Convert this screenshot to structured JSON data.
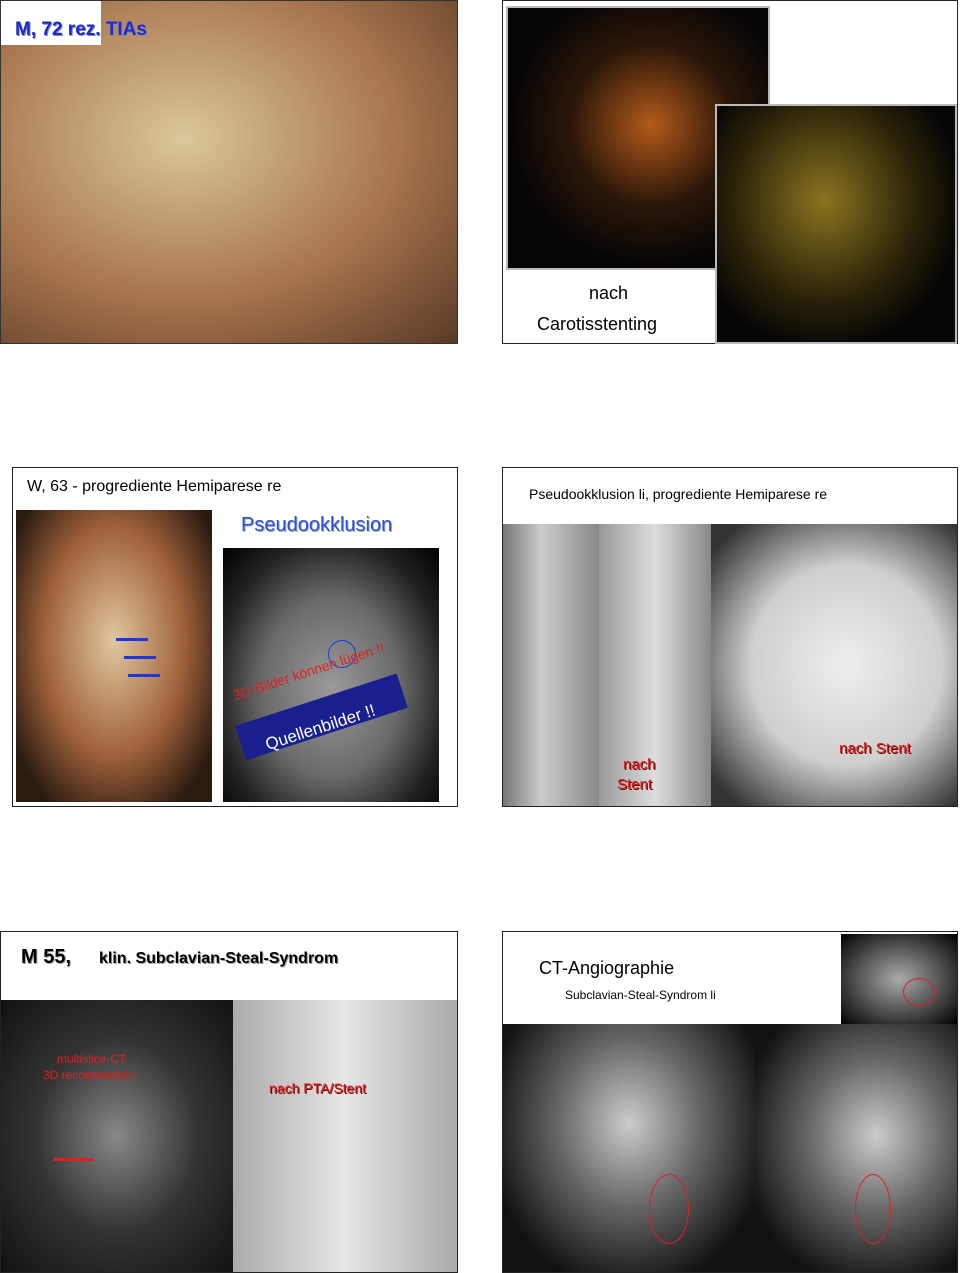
{
  "slide1": {
    "title": "M, 72   rez. TIAs",
    "caption_line1": "nach",
    "caption_line2": "Carotisstenting"
  },
  "slide2": {
    "title": "W, 63 - progrediente Hemiparese re",
    "heading": "Pseudookklusion",
    "overlay_line1": "3D-Bilder können lügen !!",
    "overlay_line2": "Quellenbilder !!"
  },
  "slide3": {
    "title": "Pseudookklusion li, progrediente Hemiparese re",
    "label_left_line1": "nach",
    "label_left_line2": "Stent",
    "label_right": "nach Stent"
  },
  "slide4": {
    "title": "M 55,",
    "subtitle": "klin. Subclavian-Steal-Syndrom",
    "overlay_line1": "multislice-CT",
    "overlay_line2": "3D reconstruction",
    "label": "nach PTA/Stent"
  },
  "slide5": {
    "title": "CT-Angiographie",
    "subtitle": "Subclavian-Steal-Syndrom li"
  }
}
